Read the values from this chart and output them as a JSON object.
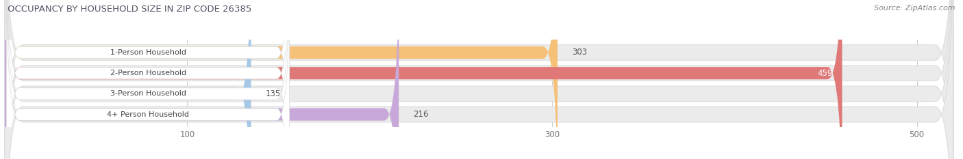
{
  "title": "OCCUPANCY BY HOUSEHOLD SIZE IN ZIP CODE 26385",
  "source": "Source: ZipAtlas.com",
  "categories": [
    "1-Person Household",
    "2-Person Household",
    "3-Person Household",
    "4+ Person Household"
  ],
  "values": [
    303,
    459,
    135,
    216
  ],
  "bar_colors": [
    "#F5C078",
    "#E07878",
    "#A8C8E8",
    "#C8A8D8"
  ],
  "xlim_max": 520,
  "xticks": [
    100,
    300,
    500
  ],
  "figsize": [
    14.06,
    2.33
  ],
  "dpi": 100,
  "title_color": "#555566",
  "source_color": "#888888",
  "label_bg": "#FFFFFF",
  "bar_bg": "#EBEBEB",
  "bar_bg_edge": "#DDDDDD"
}
